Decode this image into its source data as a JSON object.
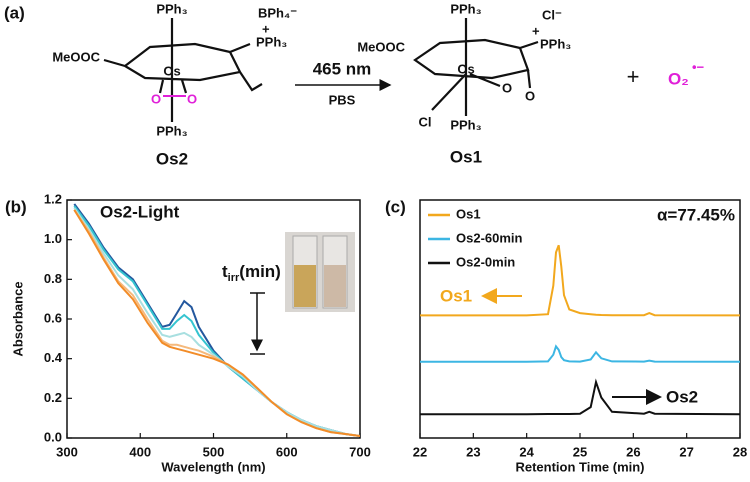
{
  "scheme": {
    "panel_label": "(a)",
    "reactant": {
      "label": "Os2",
      "metal": "Os",
      "ligand_top": "PPh₃",
      "ligand_bottom": "PPh₃",
      "counterion": "BPh₄⁻",
      "charge": "+",
      "phosphonium": "PPh₃",
      "ester": "MeOOC",
      "peroxo": [
        "O",
        "O"
      ]
    },
    "conditions": {
      "wavelength": "465 nm",
      "solvent": "PBS"
    },
    "product": {
      "label": "Os1",
      "metal": "Os",
      "ligand_top": "PPh₃",
      "ligand_bottom": "PPh₃",
      "counterion": "Cl⁻",
      "charge": "+",
      "phosphonium": "PPh₃",
      "ester": "MeOOC",
      "chloride": "Cl",
      "carbonyl_o": "O",
      "ring_o": "O"
    },
    "plus": "+",
    "byproduct": {
      "formula": "O₂",
      "superscript": "•−"
    }
  },
  "chart_data": [
    {
      "type": "line",
      "panel_label": "(b)",
      "xlabel": "Wavelength (nm)",
      "ylabel": "Absorbance",
      "annotations": {
        "title": "Os2-Light",
        "time_t": "t",
        "time_sub": "irr",
        "time_unit": "(min)"
      },
      "xlim": [
        300,
        700
      ],
      "xticks": [
        300,
        400,
        500,
        600,
        700
      ],
      "ylim": [
        0,
        1.2
      ],
      "yticks": [
        {
          "value": 0,
          "label": "0.0"
        },
        0.2,
        0.4,
        0.6,
        0.8,
        {
          "value": 1,
          "label": "1.0"
        },
        1.2
      ],
      "x": [
        310,
        330,
        350,
        370,
        390,
        410,
        430,
        440,
        450,
        460,
        470,
        480,
        500,
        520,
        540,
        560,
        580,
        600,
        620,
        640,
        660,
        680,
        700
      ],
      "series": [
        {
          "color": "#24589e",
          "values": [
            1.18,
            1.08,
            0.96,
            0.86,
            0.8,
            0.68,
            0.56,
            0.57,
            0.63,
            0.69,
            0.66,
            0.56,
            0.44,
            0.36,
            0.3,
            0.24,
            0.18,
            0.13,
            0.09,
            0.06,
            0.04,
            0.02,
            0.01
          ]
        },
        {
          "color": "#35c4d0",
          "values": [
            1.17,
            1.07,
            0.95,
            0.85,
            0.79,
            0.67,
            0.55,
            0.55,
            0.59,
            0.62,
            0.59,
            0.52,
            0.43,
            0.36,
            0.3,
            0.24,
            0.18,
            0.13,
            0.09,
            0.06,
            0.04,
            0.02,
            0.01
          ]
        },
        {
          "color": "#a8dfe0",
          "values": [
            1.16,
            1.05,
            0.93,
            0.82,
            0.75,
            0.63,
            0.52,
            0.51,
            0.52,
            0.53,
            0.51,
            0.47,
            0.42,
            0.36,
            0.31,
            0.24,
            0.18,
            0.13,
            0.09,
            0.06,
            0.04,
            0.02,
            0.01
          ]
        },
        {
          "color": "#f5b97c",
          "values": [
            1.15,
            1.04,
            0.91,
            0.79,
            0.72,
            0.6,
            0.49,
            0.47,
            0.47,
            0.46,
            0.45,
            0.44,
            0.41,
            0.37,
            0.32,
            0.25,
            0.18,
            0.12,
            0.08,
            0.05,
            0.03,
            0.02,
            0.01
          ]
        },
        {
          "color": "#f28c28",
          "values": [
            1.15,
            1.03,
            0.9,
            0.78,
            0.7,
            0.58,
            0.48,
            0.46,
            0.45,
            0.44,
            0.43,
            0.42,
            0.4,
            0.37,
            0.32,
            0.25,
            0.18,
            0.12,
            0.08,
            0.05,
            0.03,
            0.02,
            0.01
          ]
        }
      ]
    },
    {
      "type": "line",
      "panel_label": "(c)",
      "xlabel": "Retention Time (min)",
      "legend": "upper left",
      "annotations": {
        "ratio": "α=77.45%",
        "os1": "Os1",
        "os2": "Os2"
      },
      "xlim": [
        22,
        28
      ],
      "xticks": [
        22,
        23,
        24,
        25,
        26,
        27,
        28
      ],
      "ylim": [
        0,
        1
      ],
      "x": [
        22,
        24.0,
        24.4,
        24.5,
        24.55,
        24.6,
        24.65,
        24.7,
        24.8,
        25.0,
        25.2,
        25.3,
        25.4,
        25.6,
        26.2,
        26.3,
        26.4,
        28
      ],
      "series": [
        {
          "name": "Os1",
          "color": "#f2a81d",
          "values": [
            0.515,
            0.515,
            0.52,
            0.64,
            0.78,
            0.81,
            0.72,
            0.6,
            0.54,
            0.525,
            0.52,
            0.518,
            0.517,
            0.516,
            0.516,
            0.525,
            0.516,
            0.515
          ]
        },
        {
          "name": "Os2-60min",
          "color": "#3cb6e3",
          "values": [
            0.32,
            0.32,
            0.322,
            0.35,
            0.385,
            0.37,
            0.34,
            0.327,
            0.322,
            0.321,
            0.33,
            0.36,
            0.335,
            0.322,
            0.321,
            0.325,
            0.321,
            0.32
          ]
        },
        {
          "name": "Os2-0min",
          "color": "#111111",
          "values": [
            0.1,
            0.1,
            0.101,
            0.101,
            0.101,
            0.101,
            0.101,
            0.101,
            0.101,
            0.102,
            0.13,
            0.235,
            0.17,
            0.11,
            0.102,
            0.11,
            0.102,
            0.1
          ]
        }
      ]
    }
  ]
}
